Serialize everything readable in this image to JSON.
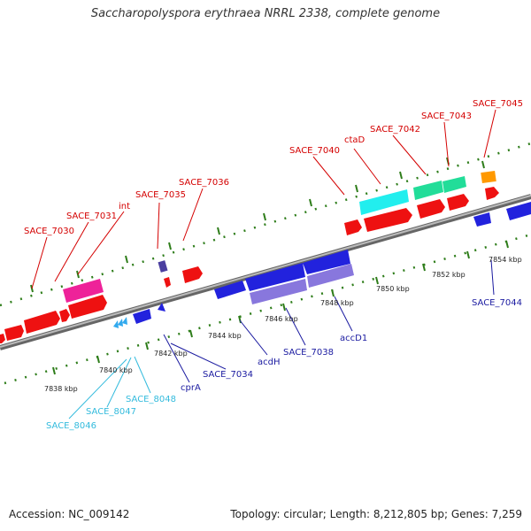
{
  "title": "Saccharopolyspora erythraea NRRL 2338, complete genome",
  "footer": {
    "accession": "Accession: NC_009142",
    "summary": "Topology: circular; Length: 8,212,805 bp; Genes: 7,259"
  },
  "colors": {
    "backbone": "#888888",
    "tick": "#2e7d1a",
    "label_red": "#d40000",
    "label_blue": "#1a1aa0",
    "label_cyan": "#33bbdd",
    "gene_red": "#ee1111",
    "gene_blue": "#2222dd",
    "gene_purple": "#8877dd",
    "gene_cyan": "#22eeee",
    "gene_teal": "#22dd99",
    "gene_magenta": "#ee2299",
    "gene_orange": "#ff9900",
    "gene_darkpurple": "#4b3fa0"
  },
  "kbp_labels": [
    "7838 kbp",
    "7840 kbp",
    "7842 kbp",
    "7844 kbp",
    "7846 kbp",
    "7848 kbp",
    "7850 kbp",
    "7852 kbp",
    "7854 kbp"
  ],
  "top_labels": [
    {
      "text": "SACE_7030"
    },
    {
      "text": "SACE_7031"
    },
    {
      "text": "int"
    },
    {
      "text": "SACE_7035"
    },
    {
      "text": "SACE_7036"
    },
    {
      "text": "SACE_7040"
    },
    {
      "text": "ctaD"
    },
    {
      "text": "SACE_7042"
    },
    {
      "text": "SACE_7043"
    },
    {
      "text": "SACE_7045"
    }
  ],
  "bottom_labels": [
    {
      "text": "SACE_8046"
    },
    {
      "text": "SACE_8047"
    },
    {
      "text": "SACE_8048"
    },
    {
      "text": "cprA"
    },
    {
      "text": "SACE_7034"
    },
    {
      "text": "acdH"
    },
    {
      "text": "SACE_7038"
    },
    {
      "text": "accD1"
    },
    {
      "text": "SACE_7044"
    }
  ]
}
